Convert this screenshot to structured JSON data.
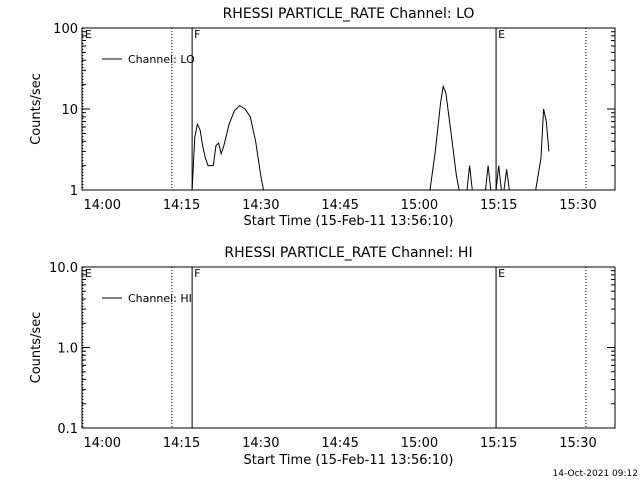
{
  "footer_timestamp": "14-Oct-2021 09:12",
  "chart_data": [
    {
      "type": "line",
      "title": "RHESSI PARTICLE_RATE Channel: LO",
      "xlabel": "Start Time (15-Feb-11 13:56:10)",
      "ylabel": "Counts/sec",
      "yscale": "log",
      "ylim": [
        1,
        100
      ],
      "xlim": [
        "13:56:10",
        "15:37:00"
      ],
      "xticks": [
        "14:00",
        "14:15",
        "14:30",
        "14:45",
        "15:00",
        "15:15",
        "15:30"
      ],
      "yticks": [
        "1",
        "10",
        "100"
      ],
      "legend": {
        "label": "Channel: LO",
        "position": "top-left"
      },
      "markers": [
        {
          "label": "E",
          "time": "13:56:20",
          "style": "dotted"
        },
        {
          "label": "",
          "time": "14:13:10",
          "style": "dotted"
        },
        {
          "label": "F",
          "time": "14:17:00",
          "style": "solid"
        },
        {
          "label": "E",
          "time": "15:14:30",
          "style": "solid"
        },
        {
          "label": "",
          "time": "15:31:30",
          "style": "dotted"
        }
      ],
      "series": [
        {
          "name": "Channel: LO",
          "segments": [
            [
              [
                "14:17:00",
                1.0
              ],
              [
                "14:17:30",
                4.5
              ],
              [
                "14:18:00",
                6.5
              ],
              [
                "14:18:30",
                5.5
              ],
              [
                "14:19:00",
                3.5
              ],
              [
                "14:19:30",
                2.5
              ],
              [
                "14:20:00",
                2.0
              ],
              [
                "14:21:00",
                2.0
              ],
              [
                "14:21:30",
                3.5
              ],
              [
                "14:22:00",
                3.8
              ],
              [
                "14:22:30",
                2.8
              ],
              [
                "14:23:00",
                3.5
              ],
              [
                "14:24:00",
                6.5
              ],
              [
                "14:25:00",
                9.5
              ],
              [
                "14:26:00",
                11.0
              ],
              [
                "14:27:00",
                10.0
              ],
              [
                "14:28:00",
                8.0
              ],
              [
                "14:29:00",
                4.0
              ],
              [
                "14:30:00",
                1.5
              ],
              [
                "14:30:30",
                1.0
              ]
            ],
            [
              [
                "15:02:00",
                1.0
              ],
              [
                "15:03:00",
                3.0
              ],
              [
                "15:04:00",
                12.0
              ],
              [
                "15:04:30",
                19.0
              ],
              [
                "15:05:00",
                16.0
              ],
              [
                "15:06:00",
                5.0
              ],
              [
                "15:07:00",
                1.5
              ],
              [
                "15:07:30",
                1.0
              ]
            ],
            [
              [
                "15:09:00",
                1.0
              ],
              [
                "15:09:30",
                2.0
              ],
              [
                "15:10:00",
                1.0
              ]
            ],
            [
              [
                "15:12:30",
                1.0
              ],
              [
                "15:13:00",
                2.0
              ],
              [
                "15:13:30",
                1.0
              ]
            ],
            [
              [
                "15:14:30",
                1.0
              ],
              [
                "15:15:00",
                2.0
              ],
              [
                "15:15:30",
                1.0
              ]
            ],
            [
              [
                "15:16:00",
                1.0
              ],
              [
                "15:16:30",
                1.8
              ],
              [
                "15:17:00",
                1.0
              ]
            ],
            [
              [
                "15:22:00",
                1.0
              ],
              [
                "15:23:00",
                2.5
              ],
              [
                "15:23:30",
                10.0
              ],
              [
                "15:24:00",
                7.0
              ],
              [
                "15:24:30",
                3.0
              ]
            ]
          ]
        }
      ]
    },
    {
      "type": "line",
      "title": "RHESSI PARTICLE_RATE Channel: HI",
      "xlabel": "Start Time (15-Feb-11 13:56:10)",
      "ylabel": "Counts/sec",
      "yscale": "log",
      "ylim": [
        0.1,
        10
      ],
      "xlim": [
        "13:56:10",
        "15:37:00"
      ],
      "xticks": [
        "14:00",
        "14:15",
        "14:30",
        "14:45",
        "15:00",
        "15:15",
        "15:30"
      ],
      "yticks": [
        "0.1",
        "1.0",
        "10.0"
      ],
      "legend": {
        "label": "Channel: HI",
        "position": "top-left"
      },
      "markers": [
        {
          "label": "E",
          "time": "13:56:20",
          "style": "dotted"
        },
        {
          "label": "",
          "time": "14:13:10",
          "style": "dotted"
        },
        {
          "label": "F",
          "time": "14:17:00",
          "style": "solid"
        },
        {
          "label": "E",
          "time": "15:14:30",
          "style": "solid"
        },
        {
          "label": "",
          "time": "15:31:30",
          "style": "dotted"
        }
      ],
      "series": [
        {
          "name": "Channel: HI",
          "segments": []
        }
      ]
    }
  ]
}
